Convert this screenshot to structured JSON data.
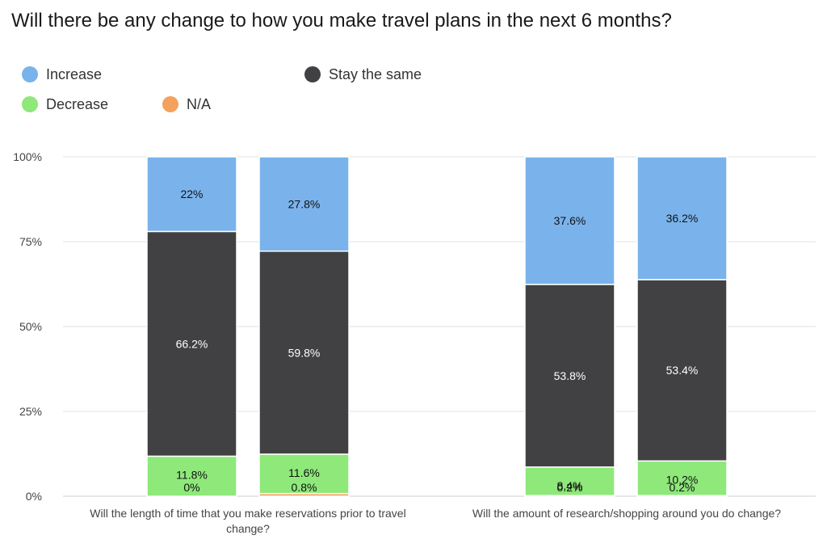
{
  "chart_data": {
    "type": "bar",
    "stacked": true,
    "title": "Will there be any change to how you make travel plans in the next 6 months?",
    "xlabel": "",
    "ylabel": "",
    "ylim": [
      0,
      100
    ],
    "yticks": [
      "0%",
      "25%",
      "50%",
      "75%",
      "100%"
    ],
    "ytick_values": [
      0,
      25,
      50,
      75,
      100
    ],
    "legend_position": "top-left",
    "grid": true,
    "groups": [
      {
        "label": "Will the length of time that you make reservations prior to travel change?",
        "label_lines": [
          "Will the length of time that you make reservations prior to travel",
          "change?"
        ],
        "bars": 2
      },
      {
        "label": "Will the amount of research/shopping around you do change?",
        "label_lines": [
          "Will the amount of research/shopping around you do change?"
        ],
        "bars": 2
      }
    ],
    "series": [
      {
        "name": "N/A",
        "color": "#f5a15e",
        "values": [
          0,
          0.8,
          0.2,
          0.2
        ],
        "labels": [
          "0%",
          "0.8%",
          "0.2%",
          "0.2%"
        ],
        "label_color": "#111111"
      },
      {
        "name": "Decrease",
        "color": "#8ee87a",
        "values": [
          11.8,
          11.6,
          8.4,
          10.2
        ],
        "labels": [
          "11.8%",
          "11.6%",
          "8.4%",
          "10.2%"
        ],
        "label_color": "#111111"
      },
      {
        "name": "Stay the same",
        "color": "#414144",
        "values": [
          66.2,
          59.8,
          53.8,
          53.4
        ],
        "labels": [
          "66.2%",
          "59.8%",
          "53.8%",
          "53.4%"
        ],
        "label_color": "#ffffff"
      },
      {
        "name": "Increase",
        "color": "#7ab3ec",
        "values": [
          22,
          27.8,
          37.6,
          36.2
        ],
        "labels": [
          "22%",
          "27.8%",
          "37.6%",
          "36.2%"
        ],
        "label_color": "#111111"
      }
    ]
  },
  "legend": {
    "increase": "Increase",
    "stay_same": "Stay the same",
    "decrease": "Decrease",
    "na": "N/A"
  },
  "colors": {
    "increase": "#7ab3ec",
    "stay_same": "#414144",
    "decrease": "#8ee87a",
    "na": "#f5a15e",
    "grid": "#e2e2e2",
    "axis_text": "#444444"
  }
}
